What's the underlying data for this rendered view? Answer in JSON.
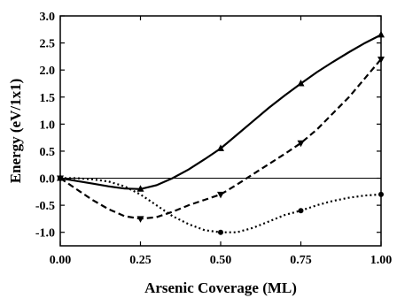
{
  "chart_data": {
    "type": "line",
    "title": "",
    "xlabel": "Arsenic Coverage (ML)",
    "ylabel": "Energy (eV/1x1)",
    "xlim": [
      0.0,
      1.0
    ],
    "ylim": [
      -1.25,
      3.0
    ],
    "x_ticks": [
      0.0,
      0.25,
      0.5,
      0.75,
      1.0
    ],
    "x_tick_labels": [
      "0.00",
      "0.25",
      "0.50",
      "0.75",
      "1.00"
    ],
    "y_ticks": [
      3.0,
      2.5,
      2.0,
      1.5,
      1.0,
      0.5,
      0.0,
      -0.5,
      -1.0
    ],
    "y_tick_labels": [
      "3.0",
      "2.5",
      "2.0",
      "1.5",
      "1.0",
      "0.5",
      "0.0",
      "-0.5",
      "-1.0"
    ],
    "grid": false,
    "reference_line": 0.0,
    "series": [
      {
        "marker": "triangle-up",
        "line_style": "solid",
        "color": "#000000",
        "points": [
          [
            0.0,
            0.0
          ],
          [
            0.25,
            -0.2
          ],
          [
            0.5,
            0.55
          ],
          [
            0.75,
            1.75
          ],
          [
            1.0,
            2.65
          ]
        ],
        "curve": [
          [
            0.0,
            0.0
          ],
          [
            0.05,
            -0.05
          ],
          [
            0.1,
            -0.1
          ],
          [
            0.15,
            -0.15
          ],
          [
            0.2,
            -0.19
          ],
          [
            0.25,
            -0.2
          ],
          [
            0.3,
            -0.13
          ],
          [
            0.35,
            0.0
          ],
          [
            0.4,
            0.16
          ],
          [
            0.45,
            0.35
          ],
          [
            0.5,
            0.55
          ],
          [
            0.55,
            0.8
          ],
          [
            0.6,
            1.05
          ],
          [
            0.65,
            1.3
          ],
          [
            0.7,
            1.53
          ],
          [
            0.75,
            1.75
          ],
          [
            0.8,
            1.96
          ],
          [
            0.85,
            2.15
          ],
          [
            0.9,
            2.33
          ],
          [
            0.95,
            2.5
          ],
          [
            1.0,
            2.65
          ]
        ]
      },
      {
        "marker": "triangle-down",
        "line_style": "dashed",
        "color": "#000000",
        "points": [
          [
            0.0,
            0.0
          ],
          [
            0.25,
            -0.75
          ],
          [
            0.5,
            -0.3
          ],
          [
            0.75,
            0.65
          ],
          [
            1.0,
            2.2
          ]
        ],
        "curve": [
          [
            0.0,
            0.0
          ],
          [
            0.05,
            -0.2
          ],
          [
            0.1,
            -0.4
          ],
          [
            0.15,
            -0.57
          ],
          [
            0.2,
            -0.7
          ],
          [
            0.25,
            -0.75
          ],
          [
            0.3,
            -0.72
          ],
          [
            0.35,
            -0.62
          ],
          [
            0.4,
            -0.5
          ],
          [
            0.45,
            -0.4
          ],
          [
            0.5,
            -0.3
          ],
          [
            0.55,
            -0.12
          ],
          [
            0.6,
            0.07
          ],
          [
            0.65,
            0.26
          ],
          [
            0.7,
            0.45
          ],
          [
            0.75,
            0.65
          ],
          [
            0.8,
            0.9
          ],
          [
            0.85,
            1.2
          ],
          [
            0.9,
            1.5
          ],
          [
            0.95,
            1.85
          ],
          [
            1.0,
            2.2
          ]
        ]
      },
      {
        "marker": "circle",
        "line_style": "dotted",
        "color": "#000000",
        "points": [
          [
            0.0,
            0.0
          ],
          [
            0.5,
            -1.0
          ],
          [
            0.75,
            -0.6
          ],
          [
            1.0,
            -0.3
          ]
        ],
        "curve": [
          [
            0.0,
            0.0
          ],
          [
            0.05,
            0.0
          ],
          [
            0.1,
            -0.02
          ],
          [
            0.15,
            -0.06
          ],
          [
            0.2,
            -0.15
          ],
          [
            0.25,
            -0.3
          ],
          [
            0.3,
            -0.5
          ],
          [
            0.35,
            -0.7
          ],
          [
            0.4,
            -0.85
          ],
          [
            0.45,
            -0.96
          ],
          [
            0.5,
            -1.0
          ],
          [
            0.55,
            -1.0
          ],
          [
            0.6,
            -0.92
          ],
          [
            0.65,
            -0.8
          ],
          [
            0.7,
            -0.68
          ],
          [
            0.75,
            -0.6
          ],
          [
            0.8,
            -0.5
          ],
          [
            0.85,
            -0.42
          ],
          [
            0.9,
            -0.36
          ],
          [
            0.95,
            -0.32
          ],
          [
            1.0,
            -0.3
          ]
        ]
      }
    ]
  }
}
